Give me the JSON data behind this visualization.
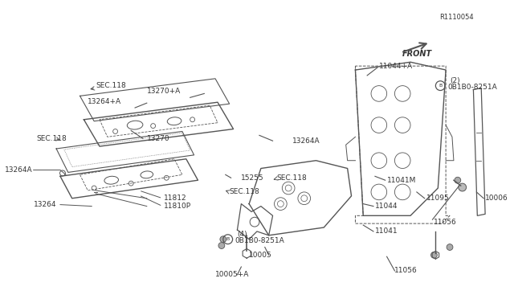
{
  "title": "",
  "bg_color": "#ffffff",
  "line_color": "#555555",
  "text_color": "#333333",
  "fig_width": 6.4,
  "fig_height": 3.72,
  "dpi": 100,
  "ref_number": "R1110054",
  "parts": {
    "left_cover_top": {
      "label": "11810P",
      "label2": "11812",
      "label3": "13264",
      "label4": "13264A",
      "sec118_1": "SEC.118"
    },
    "center_upper": {
      "label": "10005+A",
      "label2": "10005",
      "label3": "0B1B0-8251A",
      "label3_qty": "(4)"
    },
    "right_head": {
      "label": "11056",
      "label2": "11041",
      "label3": "11044",
      "label4": "11095",
      "label5": "11056",
      "label6": "11041M",
      "label7": "10006",
      "label8": "11044+A",
      "label9": "0B1B0-8251A",
      "label9_qty": "(2)"
    },
    "center_lower": {
      "label": "15255",
      "label2": "SEC.118",
      "label3": "13264A",
      "label4": "13270",
      "label5": "13264+A",
      "label6": "13270+A",
      "label7": "SEC.118"
    },
    "front_arrow": "FRONT"
  }
}
